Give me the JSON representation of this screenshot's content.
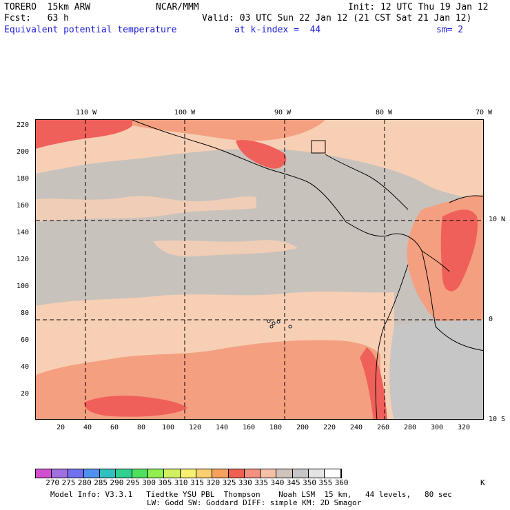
{
  "header": {
    "model": "TORERO  15km ARW",
    "org": "NCAR/MMM",
    "init": "Init: 12 UTC Thu 19 Jan 12",
    "fcst": "Fcst:   63 h",
    "valid": "Valid: 03 UTC Sun 22 Jan 12 (21 CST Sat 21 Jan 12)",
    "field": "Equivalent potential temperature",
    "level": "at k-index =  44",
    "smooth": "sm= 2"
  },
  "map": {
    "lon_labels": [
      "110 W",
      "100 W",
      "90 W",
      "80 W",
      "70 W"
    ],
    "lat_labels": [
      "10 N",
      "0",
      "10 S"
    ],
    "y_ticks": [
      "220",
      "200",
      "180",
      "160",
      "140",
      "120",
      "100",
      "80",
      "60",
      "40",
      "20"
    ],
    "x_ticks": [
      "20",
      "40",
      "60",
      "80",
      "100",
      "120",
      "140",
      "160",
      "180",
      "200",
      "220",
      "240",
      "260",
      "280",
      "300",
      "320"
    ],
    "background_color": "#c8c2bc",
    "colors": {
      "c340": "#f7cfb5",
      "c335": "#f4a080",
      "c330": "#f0605a",
      "c345": "#cdc4bc",
      "c350": "#c6c6c6"
    }
  },
  "colorbar": {
    "labels": [
      "270",
      "275",
      "280",
      "285",
      "290",
      "295",
      "300",
      "305",
      "310",
      "315",
      "320",
      "325",
      "330",
      "335",
      "340",
      "345",
      "350",
      "355",
      "360"
    ],
    "unit": "K",
    "colors": [
      "#d050d0",
      "#a070e0",
      "#7070f0",
      "#5090f0",
      "#30c0c0",
      "#30d090",
      "#50e060",
      "#90f050",
      "#d0f060",
      "#f8f070",
      "#f8d070",
      "#f8a060",
      "#f06050",
      "#f49080",
      "#f6c0a8",
      "#cfc4ba",
      "#c6c6c6",
      "#e4e4e4",
      "#ffffff"
    ]
  },
  "footer": {
    "line1": "Model Info: V3.3.1   Tiedtke YSU PBL  Thompson    Noah LSM  15 km,   44 levels,   80 sec",
    "line2": "LW: Godd SW: Goddard DIFF: simple KM: 2D Smagor"
  }
}
